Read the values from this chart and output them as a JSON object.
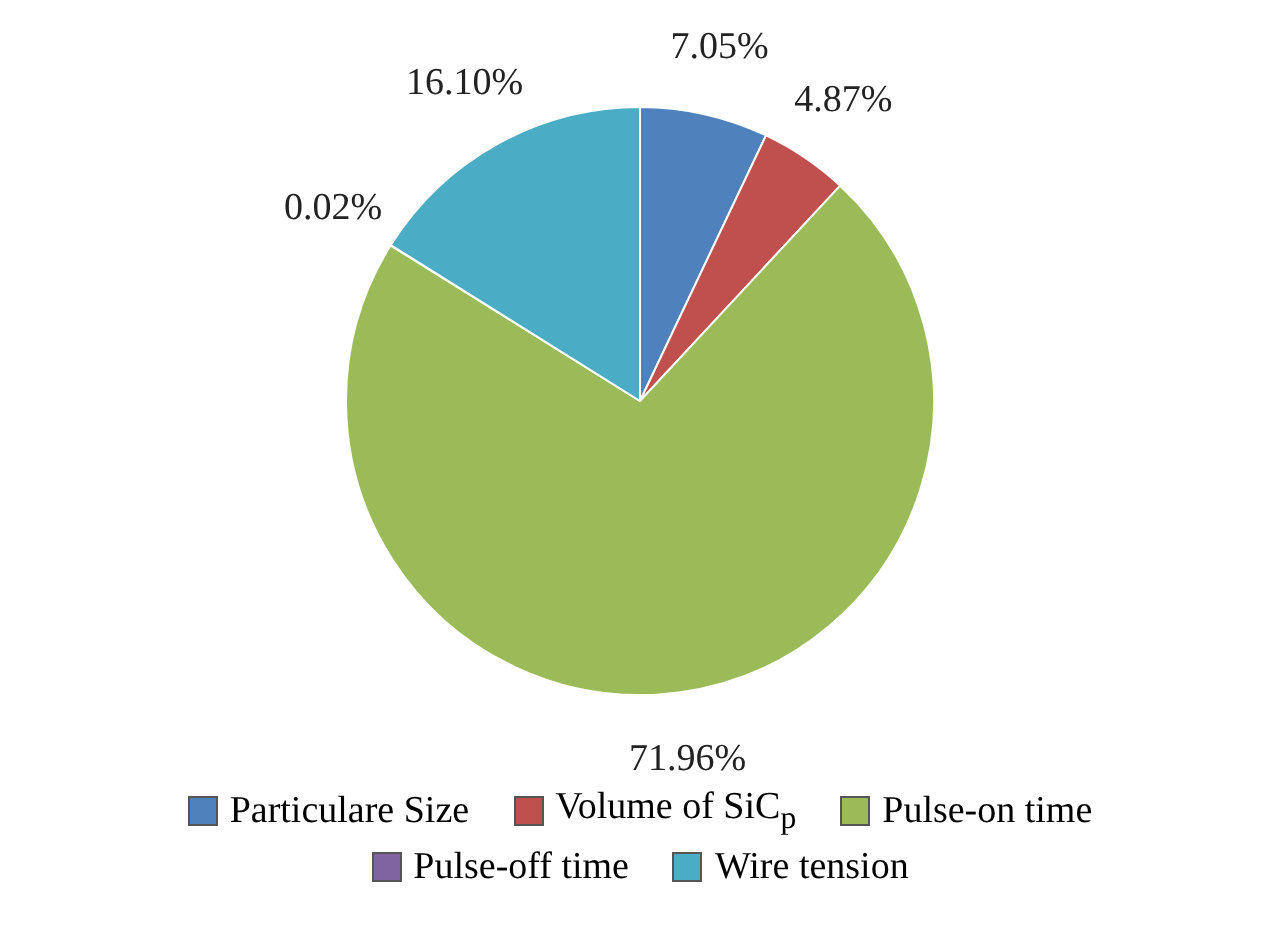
{
  "chart_data": {
    "type": "pie",
    "categories": [
      "Particulare Size",
      "Volume of SiC$_{p}$",
      "Pulse-on time",
      "Pulse-off time",
      "Wire tension"
    ],
    "values": [
      7.05,
      4.87,
      71.96,
      0.02,
      16.1
    ],
    "colors": [
      "#4f81bd",
      "#c0504d",
      "#9bbb59",
      "#8064a2",
      "#4bacc6"
    ],
    "value_labels": [
      "7.05%",
      "4.87%",
      "71.96%",
      "0.02%",
      "16.10%"
    ],
    "legend": "bottom"
  }
}
